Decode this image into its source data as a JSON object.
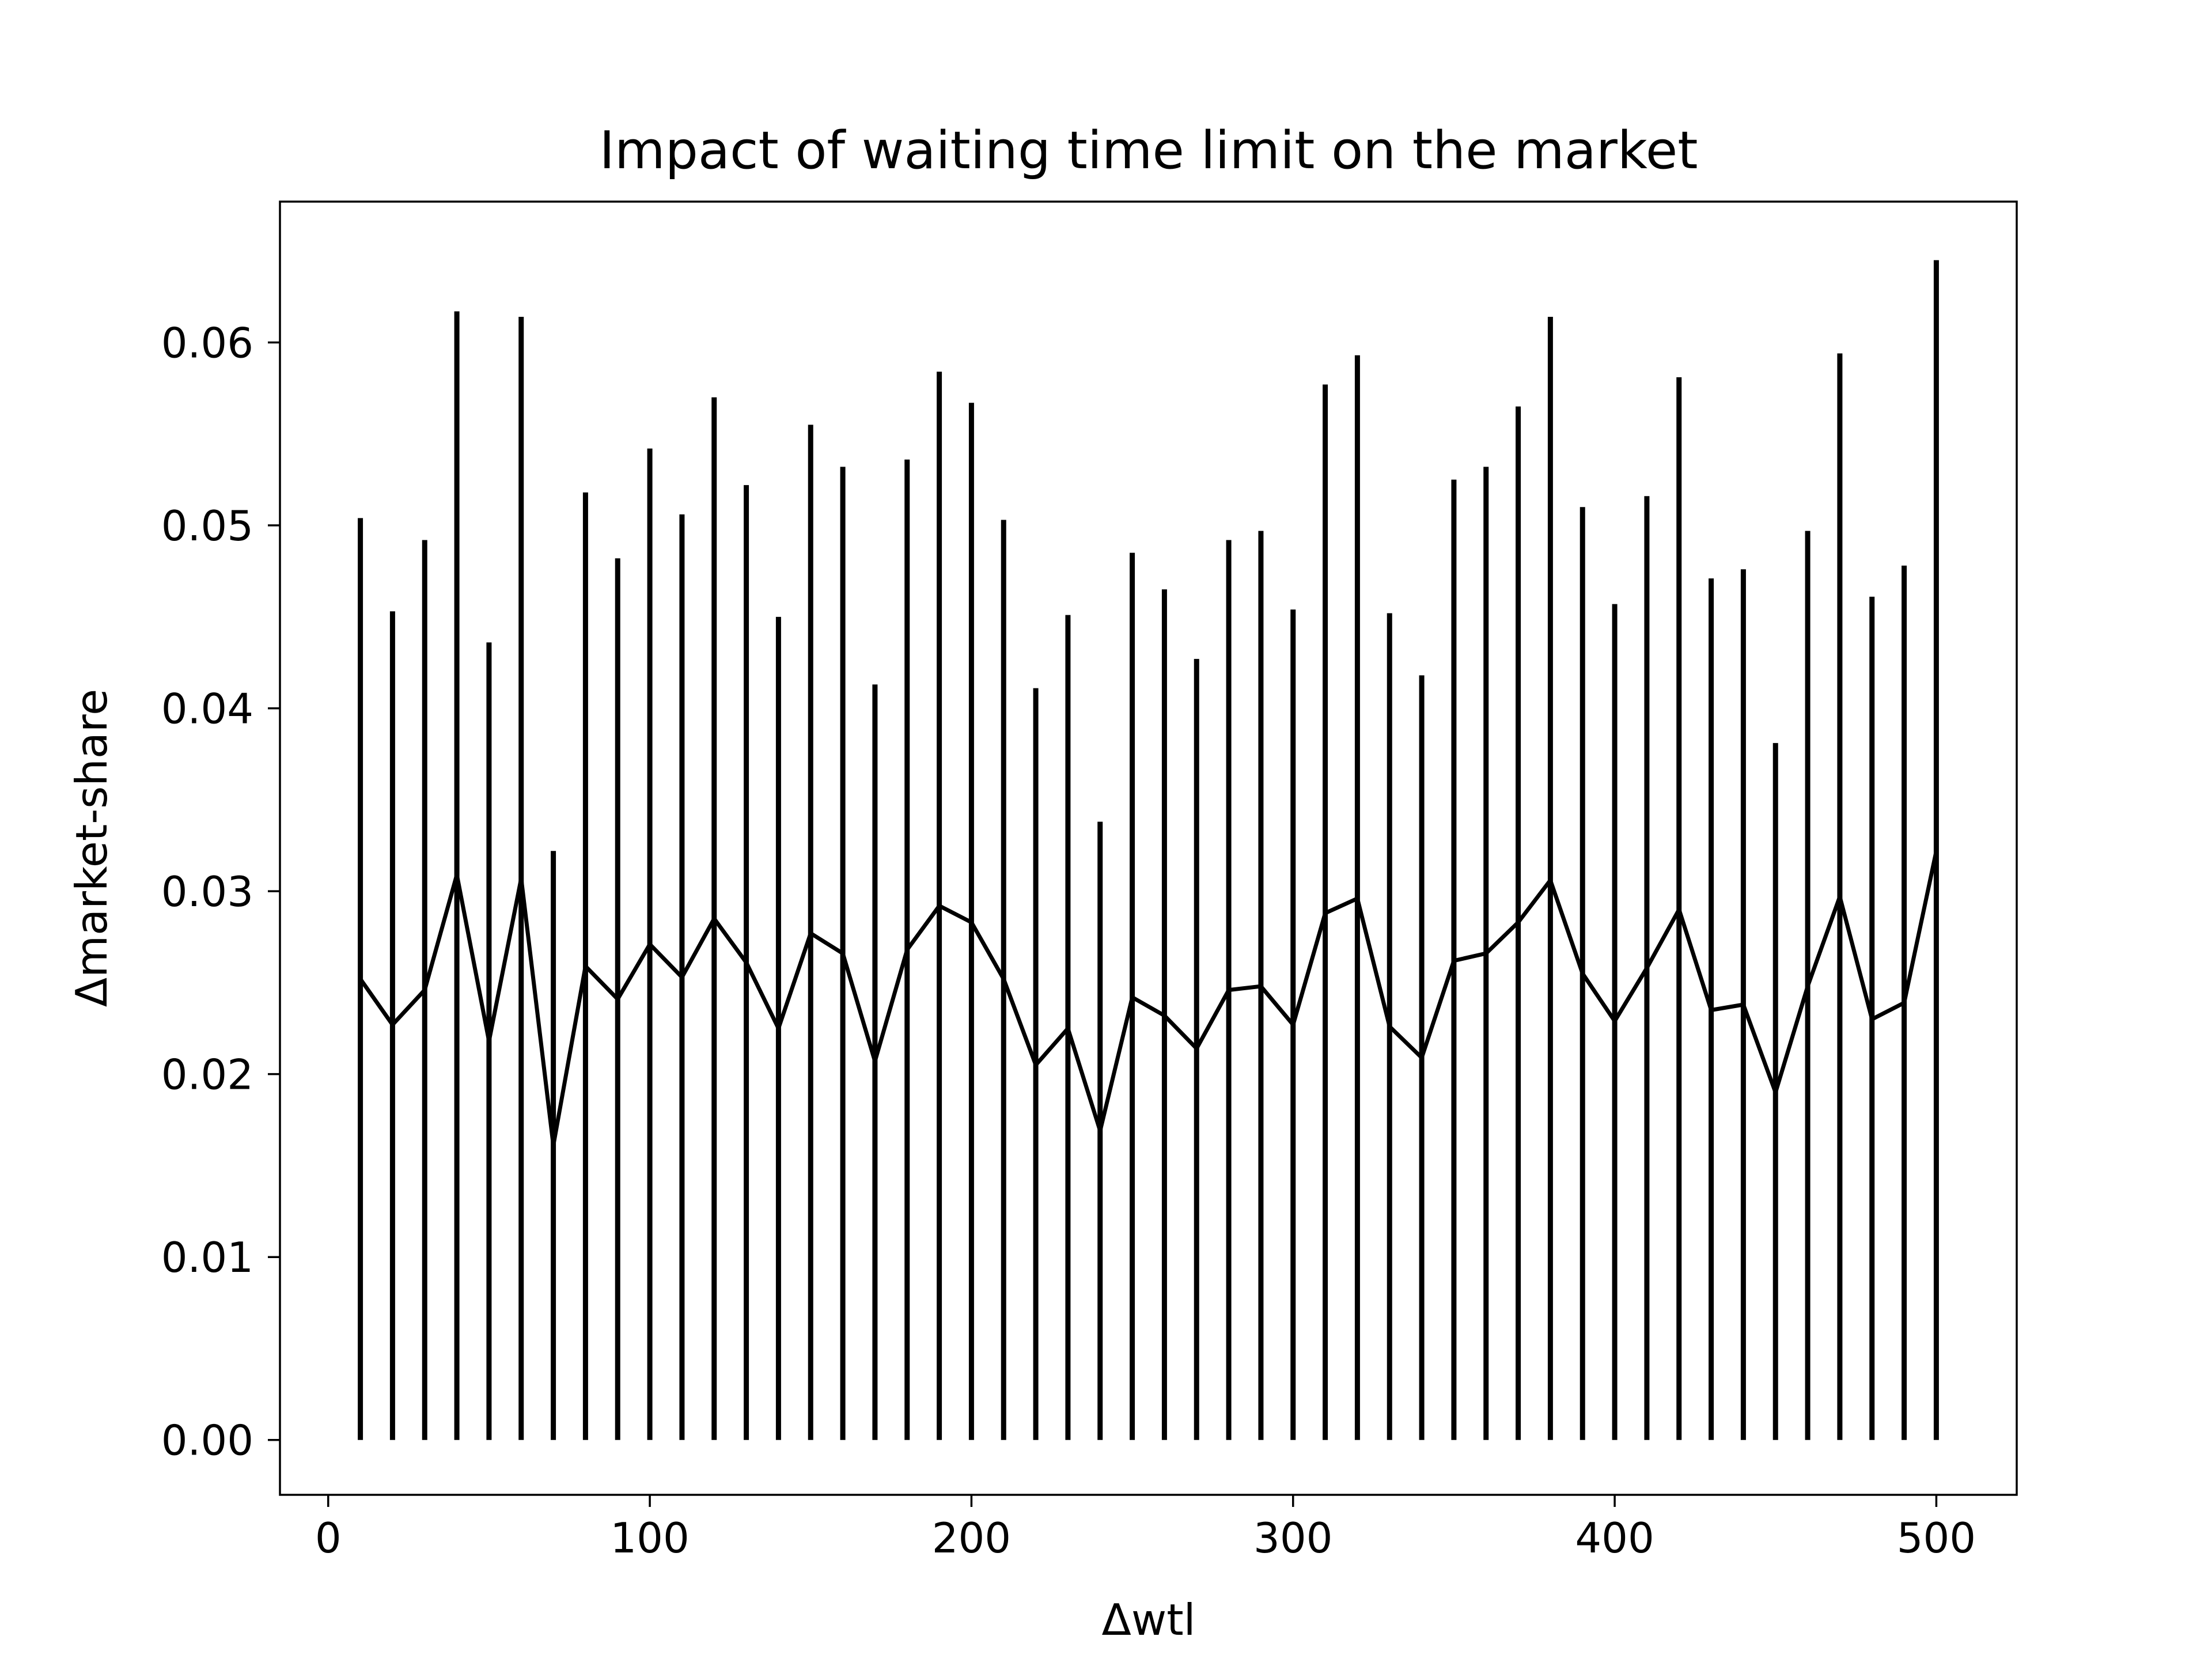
{
  "chart_data": {
    "type": "line",
    "title": "Impact of waiting time limit on the market",
    "xlabel": "Δwtl",
    "ylabel": "Δmarket-share",
    "xlim": [
      -15,
      525
    ],
    "ylim": [
      -0.003,
      0.0677
    ],
    "x_ticks": [
      0,
      100,
      200,
      300,
      400,
      500
    ],
    "x_tick_labels": [
      "0",
      "100",
      "200",
      "300",
      "400",
      "500"
    ],
    "y_ticks": [
      0.0,
      0.01,
      0.02,
      0.03,
      0.04,
      0.05,
      0.06
    ],
    "y_tick_labels": [
      "0.00",
      "0.01",
      "0.02",
      "0.03",
      "0.04",
      "0.05",
      "0.06"
    ],
    "grid": false,
    "legend": "none",
    "line_color": "#000000",
    "series": [
      {
        "x": [
          10,
          20,
          30,
          40,
          50,
          60,
          70,
          80,
          90,
          100,
          110,
          120,
          130,
          140,
          150,
          160,
          170,
          180,
          190,
          200,
          210,
          220,
          230,
          240,
          250,
          260,
          270,
          280,
          290,
          300,
          310,
          320,
          330,
          340,
          350,
          360,
          370,
          380,
          390,
          400,
          410,
          420,
          430,
          440,
          450,
          460,
          470,
          480,
          490,
          500
        ],
        "values": [
          0.0252,
          0.0227,
          0.0246,
          0.0309,
          0.0218,
          0.0307,
          0.0161,
          0.0259,
          0.0241,
          0.0271,
          0.0253,
          0.0285,
          0.0261,
          0.0225,
          0.0277,
          0.0266,
          0.0207,
          0.0268,
          0.0292,
          0.0283,
          0.0252,
          0.0205,
          0.0225,
          0.0169,
          0.0242,
          0.0232,
          0.0214,
          0.0246,
          0.0248,
          0.0227,
          0.0288,
          0.0296,
          0.0226,
          0.0209,
          0.0262,
          0.0266,
          0.0283,
          0.0306,
          0.0255,
          0.0229,
          0.0258,
          0.029,
          0.0235,
          0.0238,
          0.019,
          0.0248,
          0.0297,
          0.023,
          0.0239,
          0.0322
        ],
        "error_low": [
          0,
          0,
          0,
          0,
          0,
          0,
          0,
          0,
          0,
          0,
          0,
          0,
          0,
          0,
          0,
          0,
          0,
          0,
          0,
          0,
          0,
          0,
          0,
          0,
          0,
          0,
          0,
          0,
          0,
          0,
          0,
          0,
          0,
          0,
          0,
          0,
          0,
          0,
          0,
          0,
          0,
          0,
          0,
          0,
          0,
          0,
          0,
          0,
          0,
          0
        ],
        "error_high": [
          0.0504,
          0.0453,
          0.0492,
          0.0617,
          0.0436,
          0.0614,
          0.0322,
          0.0518,
          0.0482,
          0.0542,
          0.0506,
          0.057,
          0.0522,
          0.045,
          0.0555,
          0.0532,
          0.0413,
          0.0536,
          0.0584,
          0.0567,
          0.0503,
          0.0411,
          0.0451,
          0.0338,
          0.0485,
          0.0465,
          0.0427,
          0.0492,
          0.0497,
          0.0454,
          0.0577,
          0.0593,
          0.0452,
          0.0418,
          0.0525,
          0.0532,
          0.0565,
          0.0614,
          0.051,
          0.0457,
          0.0516,
          0.0581,
          0.0471,
          0.0476,
          0.0381,
          0.0497,
          0.0594,
          0.0461,
          0.0478,
          0.0645
        ]
      }
    ]
  }
}
